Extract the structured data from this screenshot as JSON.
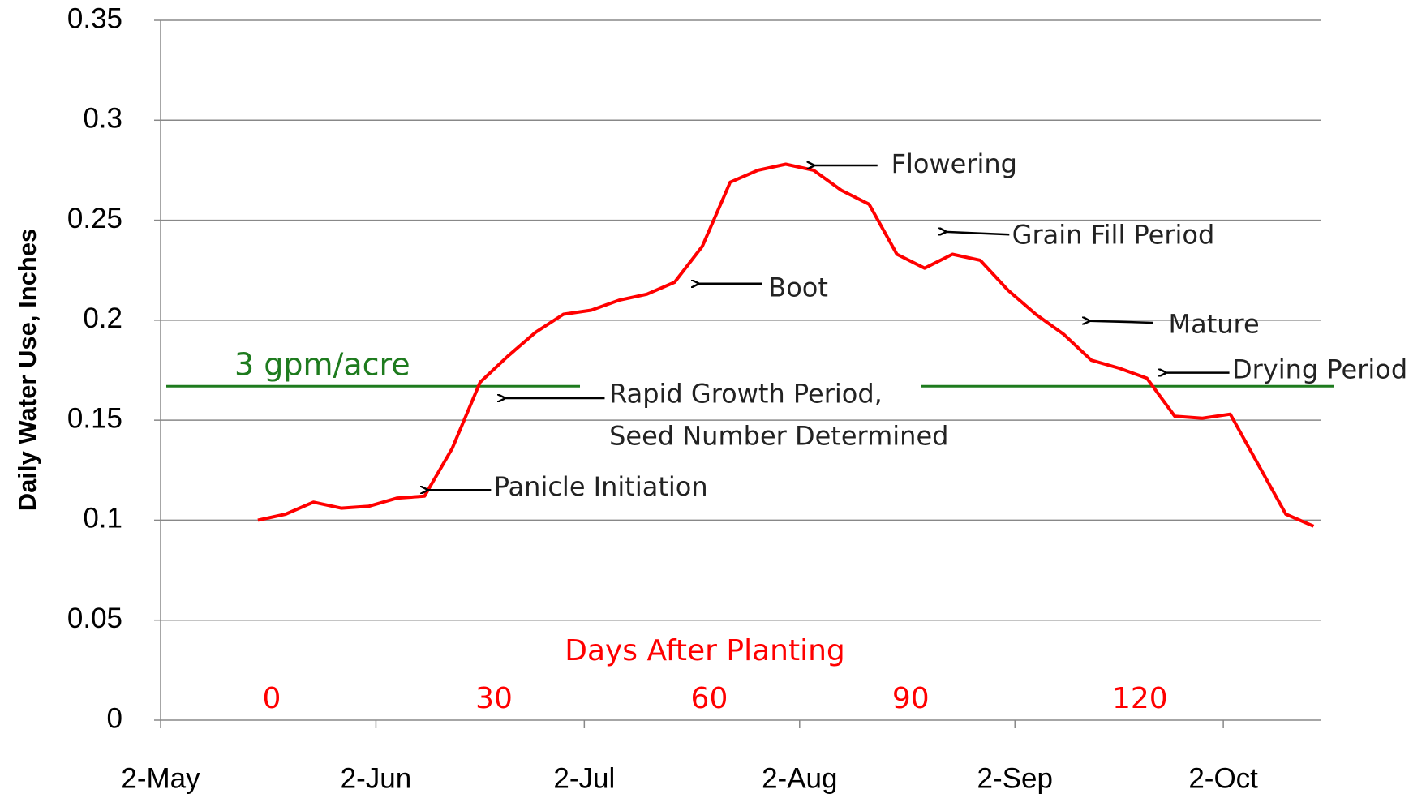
{
  "chart_data": {
    "type": "line",
    "y_label": "Daily Water Use, Inches",
    "ylim": [
      0,
      0.35
    ],
    "yticks": [
      0,
      0.05,
      0.1,
      0.15,
      0.2,
      0.25,
      0.3,
      0.35
    ],
    "xlim": [
      0,
      167
    ],
    "xticks": [
      {
        "value": 0,
        "label": "2-May"
      },
      {
        "value": 31,
        "label": "2-Jun"
      },
      {
        "value": 61,
        "label": "2-Jul"
      },
      {
        "value": 92,
        "label": "2-Aug"
      },
      {
        "value": 123,
        "label": "2-Sep"
      },
      {
        "value": 153,
        "label": "2-Oct"
      }
    ],
    "grid": true,
    "series": [
      {
        "color": "#ff0000",
        "x": [
          14,
          18,
          22,
          26,
          30,
          34,
          38,
          42,
          46,
          50,
          54,
          58,
          62,
          66,
          70,
          74,
          78,
          82,
          86,
          90,
          94,
          98,
          102,
          106,
          110,
          114,
          118,
          122,
          126,
          130,
          134,
          138,
          142,
          146,
          150,
          154,
          158,
          162,
          166
        ],
        "values": [
          0.1,
          0.103,
          0.109,
          0.106,
          0.107,
          0.111,
          0.112,
          0.136,
          0.169,
          0.182,
          0.194,
          0.203,
          0.205,
          0.21,
          0.213,
          0.219,
          0.237,
          0.269,
          0.275,
          0.278,
          0.275,
          0.265,
          0.258,
          0.233,
          0.226,
          0.233,
          0.23,
          0.215,
          0.203,
          0.193,
          0.18,
          0.176,
          0.171,
          0.152,
          0.151,
          0.153,
          0.128,
          0.103,
          0.097
        ]
      }
    ],
    "days_after_planting": {
      "label": "Days After Planting",
      "color": "#ff0000",
      "ticks": [
        {
          "value": 16,
          "label": "0"
        },
        {
          "value": 48,
          "label": "30"
        },
        {
          "value": 79,
          "label": "60"
        },
        {
          "value": 108,
          "label": "90"
        },
        {
          "value": 141,
          "label": "120"
        }
      ]
    },
    "threshold": {
      "label": "3 gpm/acre",
      "value": 0.167,
      "color": "#1e7b1e"
    },
    "annotations": [
      [
        "Flowering"
      ],
      [
        "Grain Fill Period"
      ],
      [
        "Boot"
      ],
      [
        "Mature"
      ],
      [
        "Drying Period"
      ],
      [
        "Rapid Growth Period,",
        "Seed Number Determined"
      ],
      [
        "Panicle Initiation"
      ]
    ]
  }
}
